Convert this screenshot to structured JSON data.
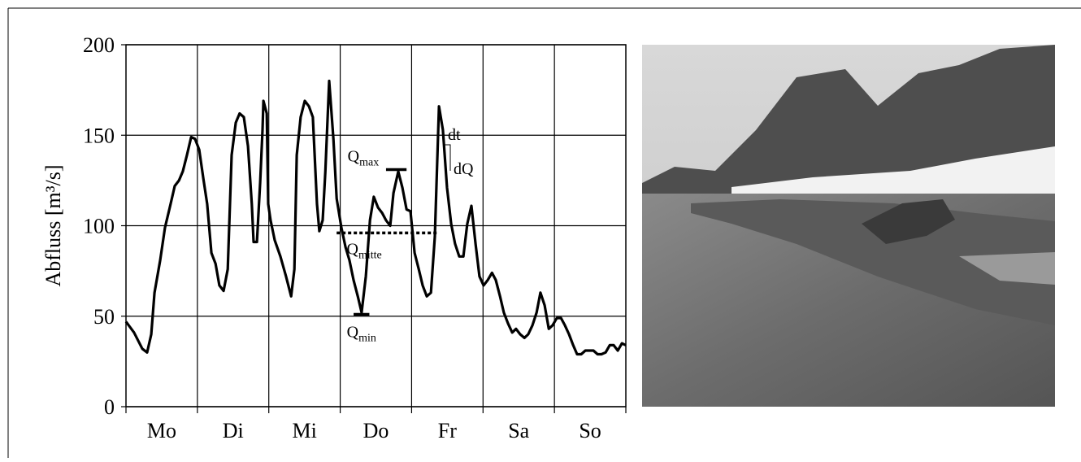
{
  "chart_data": {
    "type": "line",
    "y_label": "Abfluss [m³/s]",
    "categories": [
      "Mo",
      "Di",
      "Mi",
      "Do",
      "Fr",
      "Sa",
      "So"
    ],
    "xlim": [
      0,
      168
    ],
    "ylim": [
      0,
      200
    ],
    "yticks": [
      0,
      50,
      100,
      150,
      200
    ],
    "grid": true,
    "color": "#000000",
    "x": [
      0,
      2.7,
      5.5,
      7.1,
      8.5,
      9.6,
      11.5,
      13.1,
      15.0,
      16.4,
      17.8,
      19.1,
      20.5,
      21.9,
      23.2,
      24.6,
      26.0,
      27.3,
      28.7,
      30.1,
      31.4,
      32.8,
      34.2,
      35.5,
      36.9,
      38.2,
      39.6,
      41.0,
      42.3,
      42.9,
      44.0,
      45.1,
      45.9,
      46.2,
      47.3,
      47.8,
      48.6,
      50.0,
      51.9,
      53.8,
      55.5,
      56.6,
      57.4,
      58.7,
      60.1,
      61.5,
      62.8,
      64.2,
      65.0,
      66.1,
      67.0,
      68.3,
      69.7,
      70.8,
      72.4,
      73.8,
      75.1,
      76.5,
      77.9,
      79.2,
      80.6,
      82.0,
      83.3,
      84.7,
      86.1,
      87.4,
      88.8,
      89.9,
      91.5,
      92.9,
      94.3,
      95.6,
      97.0,
      98.4,
      99.7,
      101.1,
      102.5,
      103.8,
      105.2,
      106.5,
      107.9,
      109.3,
      110.6,
      112.0,
      113.4,
      114.7,
      116.1,
      117.5,
      118.8,
      120.2,
      121.6,
      123.0,
      124.3,
      125.7,
      127.0,
      128.4,
      129.8,
      131.1,
      132.5,
      133.9,
      135.2,
      136.6,
      138.0,
      139.3,
      140.7,
      142.1,
      143.4,
      144.8,
      146.2,
      147.5,
      148.9,
      150.3,
      151.6,
      153.0,
      154.4,
      155.7,
      157.1,
      158.5,
      159.8,
      161.2,
      162.6,
      163.9,
      165.3,
      166.7,
      168.0
    ],
    "values": [
      47,
      41,
      32,
      30,
      40,
      63,
      81,
      99,
      112,
      122,
      125,
      130,
      139,
      149,
      148,
      142,
      126,
      112,
      85,
      79,
      67,
      64,
      76,
      139,
      157,
      162,
      160,
      144,
      112,
      91,
      91,
      124,
      153,
      169,
      162,
      112,
      103,
      92,
      83,
      72,
      61,
      76,
      139,
      160,
      169,
      166,
      160,
      112,
      97,
      103,
      130,
      180,
      148,
      115,
      99,
      88,
      81,
      70,
      61,
      52,
      72,
      103,
      116,
      110,
      107,
      103,
      100,
      118,
      130,
      121,
      109,
      108,
      85,
      76,
      67,
      61,
      63,
      94,
      166,
      153,
      121,
      101,
      90,
      83,
      83,
      101,
      111,
      90,
      72,
      67,
      70,
      74,
      70,
      61,
      52,
      46,
      41,
      43,
      40,
      38,
      40,
      45,
      52,
      63,
      56,
      43,
      45,
      49,
      49,
      45,
      40,
      34,
      29,
      29,
      31,
      31,
      31,
      29,
      29,
      30,
      34,
      34,
      31,
      35,
      34
    ],
    "annotations": [
      {
        "text": "Q",
        "sub": "max",
        "y": 131,
        "x": [
          87.4,
          94.3
        ],
        "style": "solid"
      },
      {
        "text": "Q",
        "sub": "mitte",
        "y": 96,
        "x": [
          70.8,
          105.2
        ],
        "style": "dotted"
      },
      {
        "text": "Q",
        "sub": "min",
        "y": 51,
        "x": [
          76.5,
          81.8
        ],
        "style": "solid"
      }
    ],
    "slope_labels": [
      "dt",
      "dQ"
    ]
  }
}
